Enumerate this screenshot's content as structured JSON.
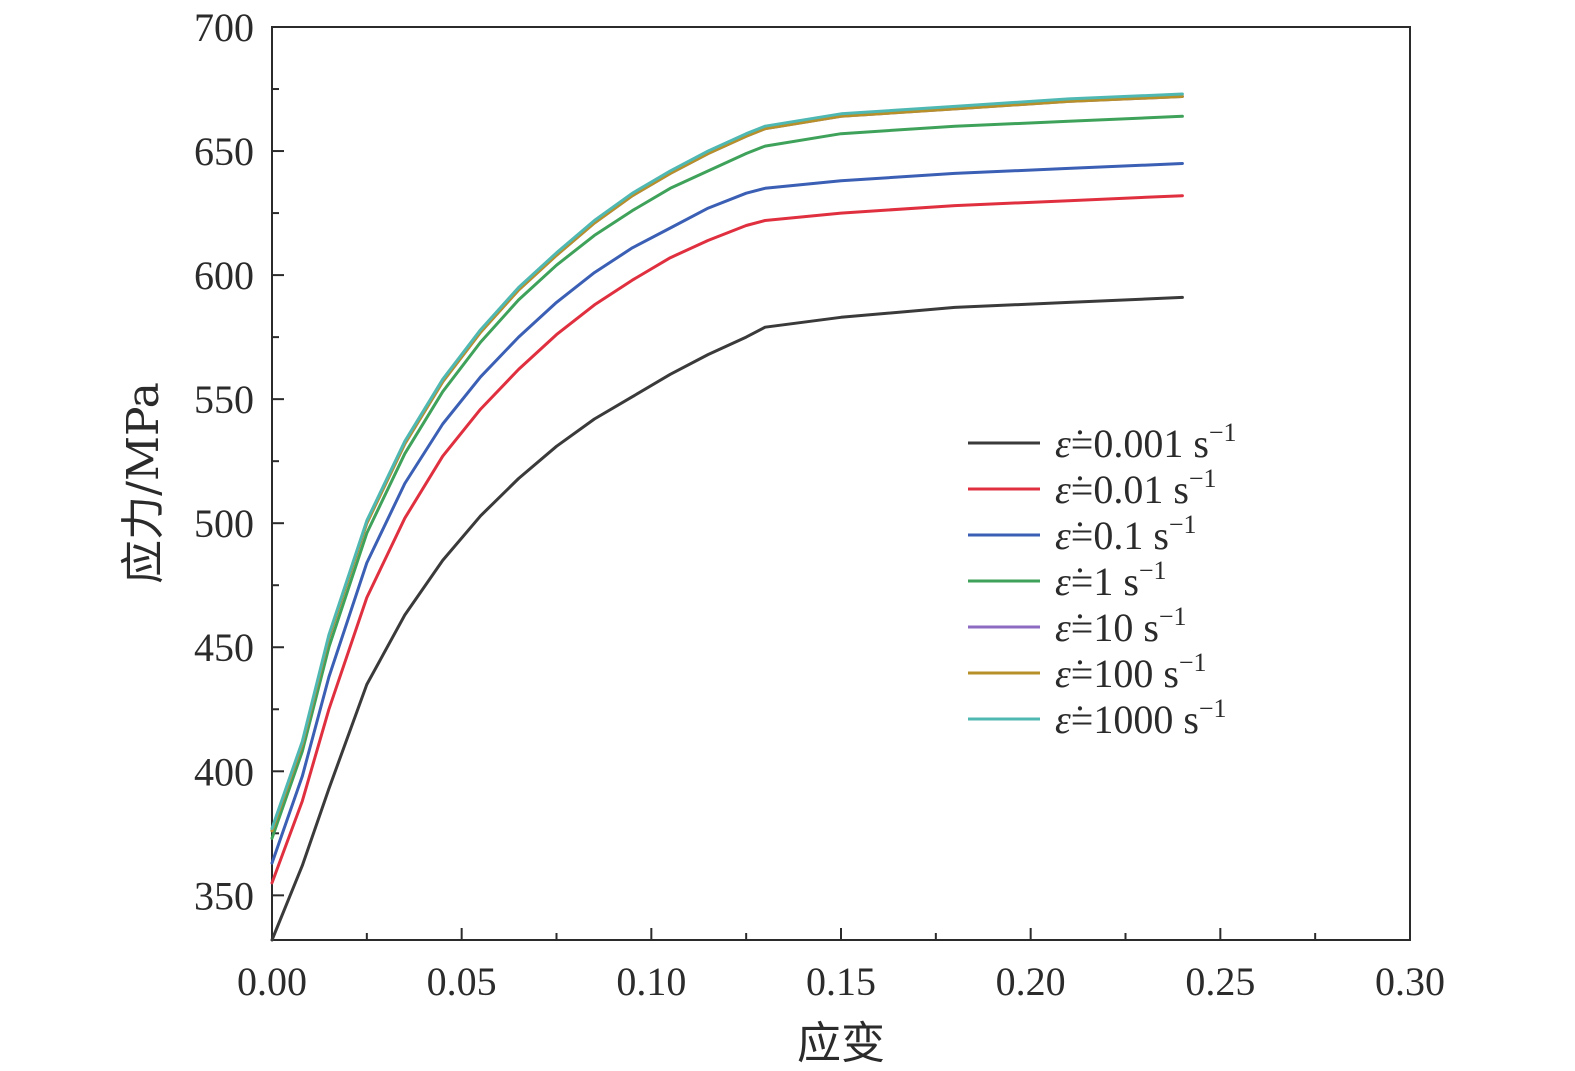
{
  "chart_data": {
    "type": "line",
    "title": "",
    "xlabel": "应变",
    "ylabel": "应力/MPa",
    "xlim": [
      0,
      0.3
    ],
    "ylim": [
      332,
      700
    ],
    "x_ticks": [
      0.0,
      0.05,
      0.1,
      0.15,
      0.2,
      0.25,
      0.3
    ],
    "x_tick_labels": [
      "0.00",
      "0.05",
      "0.10",
      "0.15",
      "0.20",
      "0.25",
      "0.30"
    ],
    "y_ticks": [
      350,
      400,
      450,
      500,
      550,
      600,
      650,
      700
    ],
    "y_tick_labels": [
      "350",
      "400",
      "450",
      "500",
      "550",
      "600",
      "650",
      "700"
    ],
    "grid": false,
    "legend_position": "right-center",
    "legend_symbol": "ε̇",
    "legend_unit": "s",
    "legend_exponent": "−1",
    "series": [
      {
        "name": "0.001",
        "color": "#3a3a3a",
        "x": [
          0,
          0.008,
          0.015,
          0.025,
          0.035,
          0.045,
          0.055,
          0.065,
          0.075,
          0.085,
          0.095,
          0.105,
          0.115,
          0.125,
          0.13,
          0.15,
          0.18,
          0.21,
          0.24
        ],
        "y": [
          332,
          362,
          393,
          435,
          463,
          485,
          503,
          518,
          531,
          542,
          551,
          560,
          568,
          575,
          579,
          583,
          587,
          589,
          591
        ]
      },
      {
        "name": "0.01",
        "color": "#e0303f",
        "x": [
          0,
          0.008,
          0.015,
          0.025,
          0.035,
          0.045,
          0.055,
          0.065,
          0.075,
          0.085,
          0.095,
          0.105,
          0.115,
          0.125,
          0.13,
          0.15,
          0.18,
          0.21,
          0.24
        ],
        "y": [
          355,
          388,
          425,
          470,
          502,
          527,
          546,
          562,
          576,
          588,
          598,
          607,
          614,
          620,
          622,
          625,
          628,
          630,
          632
        ]
      },
      {
        "name": "0.1",
        "color": "#3a5fb4",
        "x": [
          0,
          0.008,
          0.015,
          0.025,
          0.035,
          0.045,
          0.055,
          0.065,
          0.075,
          0.085,
          0.095,
          0.105,
          0.115,
          0.125,
          0.13,
          0.15,
          0.18,
          0.21,
          0.24
        ],
        "y": [
          363,
          398,
          438,
          484,
          516,
          540,
          559,
          575,
          589,
          601,
          611,
          619,
          627,
          633,
          635,
          638,
          641,
          643,
          645
        ]
      },
      {
        "name": "1",
        "color": "#3fa25a",
        "x": [
          0,
          0.008,
          0.015,
          0.025,
          0.035,
          0.045,
          0.055,
          0.065,
          0.075,
          0.085,
          0.095,
          0.105,
          0.115,
          0.125,
          0.13,
          0.15,
          0.18,
          0.21,
          0.24
        ],
        "y": [
          373,
          408,
          450,
          496,
          528,
          553,
          573,
          590,
          604,
          616,
          626,
          635,
          642,
          649,
          652,
          657,
          660,
          662,
          664
        ]
      },
      {
        "name": "10",
        "color": "#8e6bc3",
        "x": [
          0,
          0.008,
          0.015,
          0.025,
          0.035,
          0.045,
          0.055,
          0.065,
          0.075,
          0.085,
          0.095,
          0.105,
          0.115,
          0.125,
          0.13,
          0.15,
          0.18,
          0.21,
          0.24
        ],
        "y": [
          376,
          411,
          454,
          500,
          532,
          557,
          577,
          594,
          608,
          621,
          632,
          641,
          649,
          656,
          659,
          664,
          667,
          670,
          672
        ]
      },
      {
        "name": "100",
        "color": "#b8902a",
        "x": [
          0,
          0.008,
          0.015,
          0.025,
          0.035,
          0.045,
          0.055,
          0.065,
          0.075,
          0.085,
          0.095,
          0.105,
          0.115,
          0.125,
          0.13,
          0.15,
          0.18,
          0.21,
          0.24
        ],
        "y": [
          376,
          411,
          454,
          500,
          532,
          557,
          577,
          594,
          608,
          621,
          632,
          641,
          649,
          656,
          659,
          664,
          667,
          670,
          672
        ]
      },
      {
        "name": "1000",
        "color": "#4fb8b2",
        "x": [
          0,
          0.008,
          0.015,
          0.025,
          0.035,
          0.045,
          0.055,
          0.065,
          0.075,
          0.085,
          0.095,
          0.105,
          0.115,
          0.125,
          0.13,
          0.15,
          0.18,
          0.21,
          0.24
        ],
        "y": [
          377,
          412,
          455,
          501,
          533,
          558,
          578,
          595,
          609,
          622,
          633,
          642,
          650,
          657,
          660,
          665,
          668,
          671,
          673
        ]
      }
    ]
  }
}
